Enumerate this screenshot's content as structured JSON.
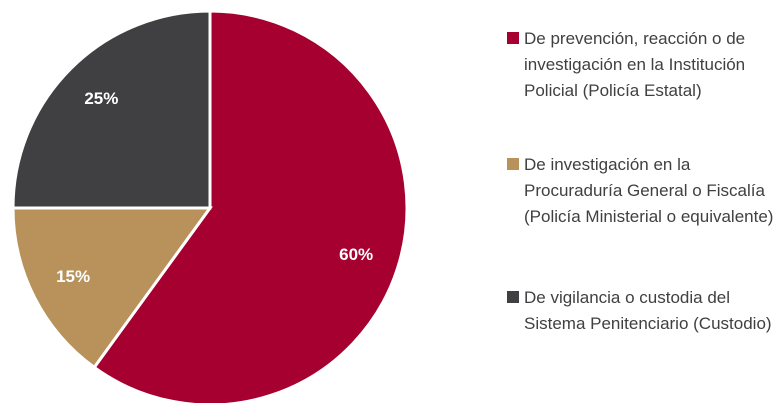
{
  "chart_data": {
    "type": "pie",
    "categories": [
      "De prevención, reacción o de investigación en la Institución Policial (Policía Estatal)",
      "De investigación en la Procuraduría General o Fiscalía (Policía Ministerial o equivalente)",
      "De vigilancia o custodia del Sistema Penitenciario (Custodio)"
    ],
    "values": [
      60,
      15,
      25
    ],
    "value_labels": [
      "60%",
      "15%",
      "25%"
    ],
    "colors": [
      "#a5002f",
      "#b8925a",
      "#404042"
    ],
    "legend": "right"
  }
}
